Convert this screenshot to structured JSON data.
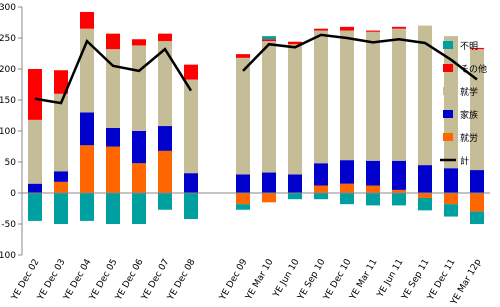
{
  "chart_data": {
    "type": "bar",
    "categories": [
      "YE Dec 02",
      "YE Dec 03",
      "YE Dec 04",
      "YE Dec 05",
      "YE Dec 06",
      "YE Dec 07",
      "YE Dec 08",
      null,
      "YE Dec 09",
      "YE Mar 10",
      "YE Jun 10",
      "YE Sep 10",
      "YE Dec 10",
      "YE Mar 11",
      "YE Jun 11",
      "YE Sep 11",
      "YE Dec 11",
      "YE Mar 12p"
    ],
    "stacked": true,
    "series": [
      {
        "name": "就労",
        "color": "#ff6600",
        "values": [
          0,
          18,
          77,
          75,
          48,
          68,
          0,
          null,
          -18,
          -15,
          0,
          12,
          15,
          12,
          5,
          -8,
          -18,
          -30
        ]
      },
      {
        "name": "家族",
        "color": "#0000cc",
        "values": [
          15,
          17,
          53,
          30,
          52,
          40,
          32,
          null,
          30,
          33,
          30,
          36,
          38,
          40,
          47,
          45,
          40,
          37
        ]
      },
      {
        "name": "就学",
        "color": "#c4bd97",
        "values": [
          103,
          125,
          135,
          127,
          138,
          137,
          151,
          null,
          188,
          212,
          210,
          214,
          209,
          208,
          213,
          225,
          213,
          195
        ]
      },
      {
        "name": "その他",
        "color": "#ff0000",
        "values": [
          82,
          38,
          27,
          25,
          10,
          12,
          24,
          null,
          6,
          3,
          4,
          3,
          6,
          2,
          3,
          0,
          0,
          2
        ]
      },
      {
        "name": "不明",
        "color": "#00a0a0",
        "values": [
          -45,
          -50,
          -45,
          -50,
          -50,
          -27,
          -42,
          null,
          -9,
          5,
          -10,
          -10,
          -18,
          -20,
          -20,
          -20,
          -20,
          -20
        ]
      },
      {
        "name": "計",
        "color": "#000000",
        "type": "line",
        "values": [
          152,
          145,
          245,
          205,
          197,
          232,
          165,
          null,
          197,
          240,
          235,
          255,
          250,
          243,
          248,
          242,
          215,
          183
        ]
      }
    ],
    "legend_order": [
      4,
      3,
      2,
      1,
      0,
      5
    ],
    "legend": "right",
    "grid": false,
    "ylim": [
      -100,
      300
    ],
    "yticks": [
      -100,
      -50,
      0,
      50,
      100,
      150,
      200,
      250,
      300
    ]
  }
}
